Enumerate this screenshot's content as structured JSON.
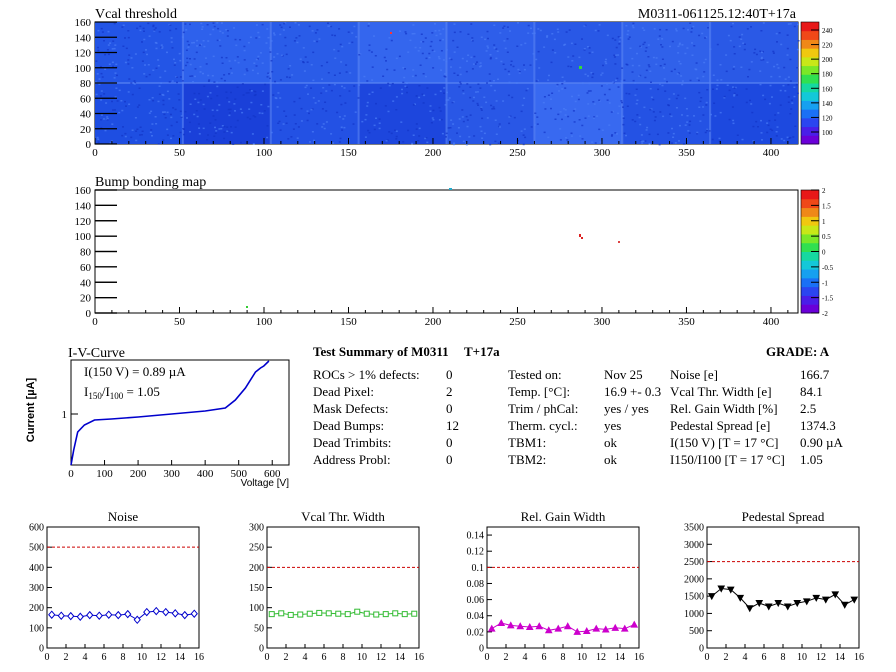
{
  "vcal_map": {
    "title": "Vcal threshold",
    "module_label": "M0311-061125.12:40T+17a",
    "x_ticks": [
      "0",
      "50",
      "100",
      "150",
      "200",
      "250",
      "300",
      "350",
      "400"
    ],
    "y_ticks": [
      "0",
      "20",
      "40",
      "60",
      "80",
      "100",
      "120",
      "140",
      "160"
    ],
    "palette_ticks": [
      "100",
      "120",
      "140",
      "160",
      "180",
      "200",
      "220",
      "240"
    ]
  },
  "bump_map": {
    "title": "Bump bonding map",
    "x_ticks": [
      "0",
      "50",
      "100",
      "150",
      "200",
      "250",
      "300",
      "350",
      "400"
    ],
    "y_ticks": [
      "0",
      "20",
      "40",
      "60",
      "80",
      "100",
      "120",
      "140",
      "160"
    ],
    "palette_ticks": [
      "-2",
      "-1.5",
      "-1",
      "-0.5",
      "0",
      "0.5",
      "1",
      "1.5",
      "2"
    ]
  },
  "iv": {
    "title": "I-V-Curve",
    "ylabel": "Current [µA]",
    "xlabel": "Voltage [V]",
    "ytick": "1",
    "x_ticks": [
      "0",
      "100",
      "200",
      "300",
      "400",
      "500",
      "600"
    ],
    "text_i150": "I(150 V) = 0.89 µA",
    "text_ratio_label_pre": "I",
    "text_ratio_sub1": "150",
    "text_ratio_mid": "/I",
    "text_ratio_sub2": "100",
    "text_ratio_val": " =  1.05"
  },
  "summary": {
    "title": "Test Summary of M0311",
    "temp_tag": "T+17a",
    "grade": "GRADE:  A",
    "col1_labels": [
      "ROCs > 1% defects:",
      "Dead Pixel:",
      "Mask Defects:",
      "Dead Bumps:",
      "Dead Trimbits:",
      "Address Probl:"
    ],
    "col1_values": [
      "0",
      "2",
      "0",
      "12",
      "0",
      "0"
    ],
    "col2_labels": [
      "Tested on:",
      "Temp. [°C]:",
      "Trim / phCal:",
      "Therm. cycl.:",
      "TBM1:",
      "TBM2:"
    ],
    "col2_values": [
      "Nov 25",
      "16.9 +- 0.3",
      "yes / yes",
      "yes",
      "ok",
      "ok"
    ],
    "col3_labels": [
      "Noise [e]",
      "Vcal Thr. Width [e]",
      "Rel. Gain Width [%]",
      "Pedestal Spread [e]",
      "I(150 V) [T = 17 °C]",
      "I150/I100  [T = 17 °C]"
    ],
    "col3_values": [
      "166.7",
      "84.1",
      "2.5",
      "1374.3",
      "0.90 µA",
      "1.05"
    ]
  },
  "chart_data": [
    {
      "type": "line",
      "title": "Noise",
      "xlim": [
        0,
        16
      ],
      "ylim": [
        0,
        600
      ],
      "x_ticks": [
        "0",
        "2",
        "4",
        "6",
        "8",
        "10",
        "12",
        "14",
        "16"
      ],
      "y_ticks": [
        "0",
        "100",
        "200",
        "300",
        "400",
        "500",
        "600"
      ],
      "threshold": 500,
      "color": "#0000cc",
      "marker": "diamond",
      "x": [
        0.5,
        1.5,
        2.5,
        3.5,
        4.5,
        5.5,
        6.5,
        7.5,
        8.5,
        9.5,
        10.5,
        11.5,
        12.5,
        13.5,
        14.5,
        15.5
      ],
      "y": [
        165,
        160,
        158,
        155,
        163,
        160,
        165,
        163,
        168,
        140,
        178,
        183,
        178,
        172,
        163,
        170
      ]
    },
    {
      "type": "line",
      "title": "Vcal Thr. Width",
      "xlim": [
        0,
        16
      ],
      "ylim": [
        0,
        300
      ],
      "x_ticks": [
        "0",
        "2",
        "4",
        "6",
        "8",
        "10",
        "12",
        "14",
        "16"
      ],
      "y_ticks": [
        "0",
        "50",
        "100",
        "150",
        "200",
        "250",
        "300"
      ],
      "threshold": 200,
      "color": "#33bb33",
      "marker": "square",
      "x": [
        0.5,
        1.5,
        2.5,
        3.5,
        4.5,
        5.5,
        6.5,
        7.5,
        8.5,
        9.5,
        10.5,
        11.5,
        12.5,
        13.5,
        14.5,
        15.5
      ],
      "y": [
        84,
        86,
        82,
        83,
        85,
        87,
        86,
        85,
        84,
        90,
        85,
        83,
        84,
        86,
        84,
        85
      ]
    },
    {
      "type": "line",
      "title": "Rel. Gain Width",
      "xlim": [
        0,
        16
      ],
      "ylim": [
        0,
        0.15
      ],
      "x_ticks": [
        "0",
        "2",
        "4",
        "6",
        "8",
        "10",
        "12",
        "14",
        "16"
      ],
      "y_ticks": [
        "0",
        "0.02",
        "0.04",
        "0.06",
        "0.08",
        "0.1",
        "0.12",
        "0.14"
      ],
      "y_tick_values": [
        0,
        0.02,
        0.04,
        0.06,
        0.08,
        0.1,
        0.12,
        0.14
      ],
      "threshold": 0.1,
      "color": "#cc00cc",
      "marker": "triangle",
      "x": [
        0.5,
        1.5,
        2.5,
        3.5,
        4.5,
        5.5,
        6.5,
        7.5,
        8.5,
        9.5,
        10.5,
        11.5,
        12.5,
        13.5,
        14.5,
        15.5
      ],
      "y": [
        0.024,
        0.031,
        0.028,
        0.027,
        0.026,
        0.027,
        0.022,
        0.024,
        0.027,
        0.02,
        0.021,
        0.024,
        0.023,
        0.025,
        0.024,
        0.029
      ]
    },
    {
      "type": "line",
      "title": "Pedestal Spread",
      "xlim": [
        0,
        16
      ],
      "ylim": [
        0,
        3500
      ],
      "x_ticks": [
        "0",
        "2",
        "4",
        "6",
        "8",
        "10",
        "12",
        "14",
        "16"
      ],
      "y_ticks": [
        "0",
        "500",
        "1000",
        "1500",
        "2000",
        "2500",
        "3000",
        "3500"
      ],
      "threshold": 2500,
      "color": "#000000",
      "marker": "triangle-down",
      "x": [
        0.5,
        1.5,
        2.5,
        3.5,
        4.5,
        5.5,
        6.5,
        7.5,
        8.5,
        9.5,
        10.5,
        11.5,
        12.5,
        13.5,
        14.5,
        15.5
      ],
      "y": [
        1500,
        1720,
        1690,
        1450,
        1150,
        1300,
        1200,
        1300,
        1200,
        1300,
        1350,
        1450,
        1400,
        1550,
        1250,
        1400
      ]
    }
  ]
}
